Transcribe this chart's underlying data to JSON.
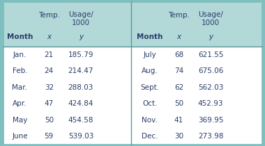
{
  "header_bg": "#b2d8d8",
  "white_bg": "#ffffff",
  "outer_border_color": "#7fbfbf",
  "divider_color": "#5a9a9a",
  "text_color": "#2c3e6b",
  "left_data": [
    [
      "Jan.",
      "21",
      "185.79"
    ],
    [
      "Feb.",
      "24",
      "214.47"
    ],
    [
      "Mar.",
      "32",
      "288.03"
    ],
    [
      "Apr.",
      "47",
      "424.84"
    ],
    [
      "May",
      "50",
      "454.58"
    ],
    [
      "June",
      "59",
      "539.03"
    ]
  ],
  "right_data": [
    [
      "July",
      "68",
      "621.55"
    ],
    [
      "Aug.",
      "74",
      "675.06"
    ],
    [
      "Sept.",
      "62",
      "562.03"
    ],
    [
      "Oct.",
      "50",
      "452.93"
    ],
    [
      "Nov.",
      "41",
      "369.95"
    ],
    [
      "Dec.",
      "30",
      "273.98"
    ]
  ],
  "figsize": [
    3.8,
    2.1
  ],
  "dpi": 100
}
